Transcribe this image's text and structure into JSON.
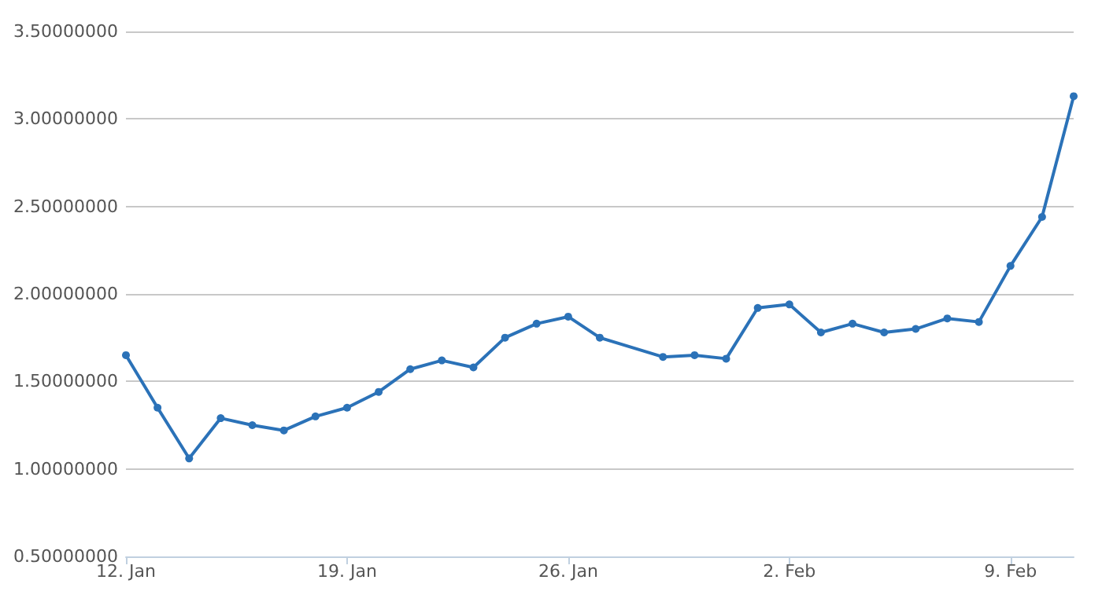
{
  "chart_data": {
    "type": "line",
    "x": [
      "--01-12",
      "--01-13",
      "--01-14",
      "--01-15",
      "--01-16",
      "--01-17",
      "--01-18",
      "--01-19",
      "--01-20",
      "--01-21",
      "--01-22",
      "--01-23",
      "--01-24",
      "--01-25",
      "--01-26",
      "--01-27",
      "--01-29",
      "--01-30",
      "--01-31",
      "--02-01",
      "--02-02",
      "--02-03",
      "--02-04",
      "--02-05",
      "--02-06",
      "--02-07",
      "--02-08",
      "--02-09",
      "--02-10",
      "--02-11"
    ],
    "series": [
      {
        "color": "#2b72b8",
        "values": [
          1.65,
          1.35,
          1.06,
          1.29,
          1.25,
          1.22,
          1.3,
          1.35,
          1.44,
          1.57,
          1.62,
          1.58,
          1.75,
          1.83,
          1.87,
          1.75,
          1.64,
          1.65,
          1.63,
          1.92,
          1.94,
          1.78,
          1.83,
          1.78,
          1.8,
          1.86,
          1.84,
          2.16,
          2.44,
          3.13
        ]
      }
    ],
    "xlim": [
      "--01-12",
      "--02-11"
    ],
    "xticks": [
      {
        "value": "--01-12",
        "label": "12. Jan"
      },
      {
        "value": "--01-19",
        "label": "19. Jan"
      },
      {
        "value": "--01-26",
        "label": "26. Jan"
      },
      {
        "value": "--02-02",
        "label": "2. Feb"
      },
      {
        "value": "--02-09",
        "label": "9. Feb"
      }
    ],
    "ylim": [
      0.5,
      3.5
    ],
    "yticks": [
      {
        "value": 0.5,
        "label": "0.50000000"
      },
      {
        "value": 1,
        "label": "1.00000000"
      },
      {
        "value": 1.5,
        "label": "1.50000000"
      },
      {
        "value": 2,
        "label": "2.00000000"
      },
      {
        "value": 2.5,
        "label": "2.50000000"
      },
      {
        "value": 3,
        "label": "3.00000000"
      },
      {
        "value": 3.5,
        "label": "3.50000000"
      }
    ],
    "grid": "y",
    "marker": "circle",
    "line_style": "solid"
  }
}
